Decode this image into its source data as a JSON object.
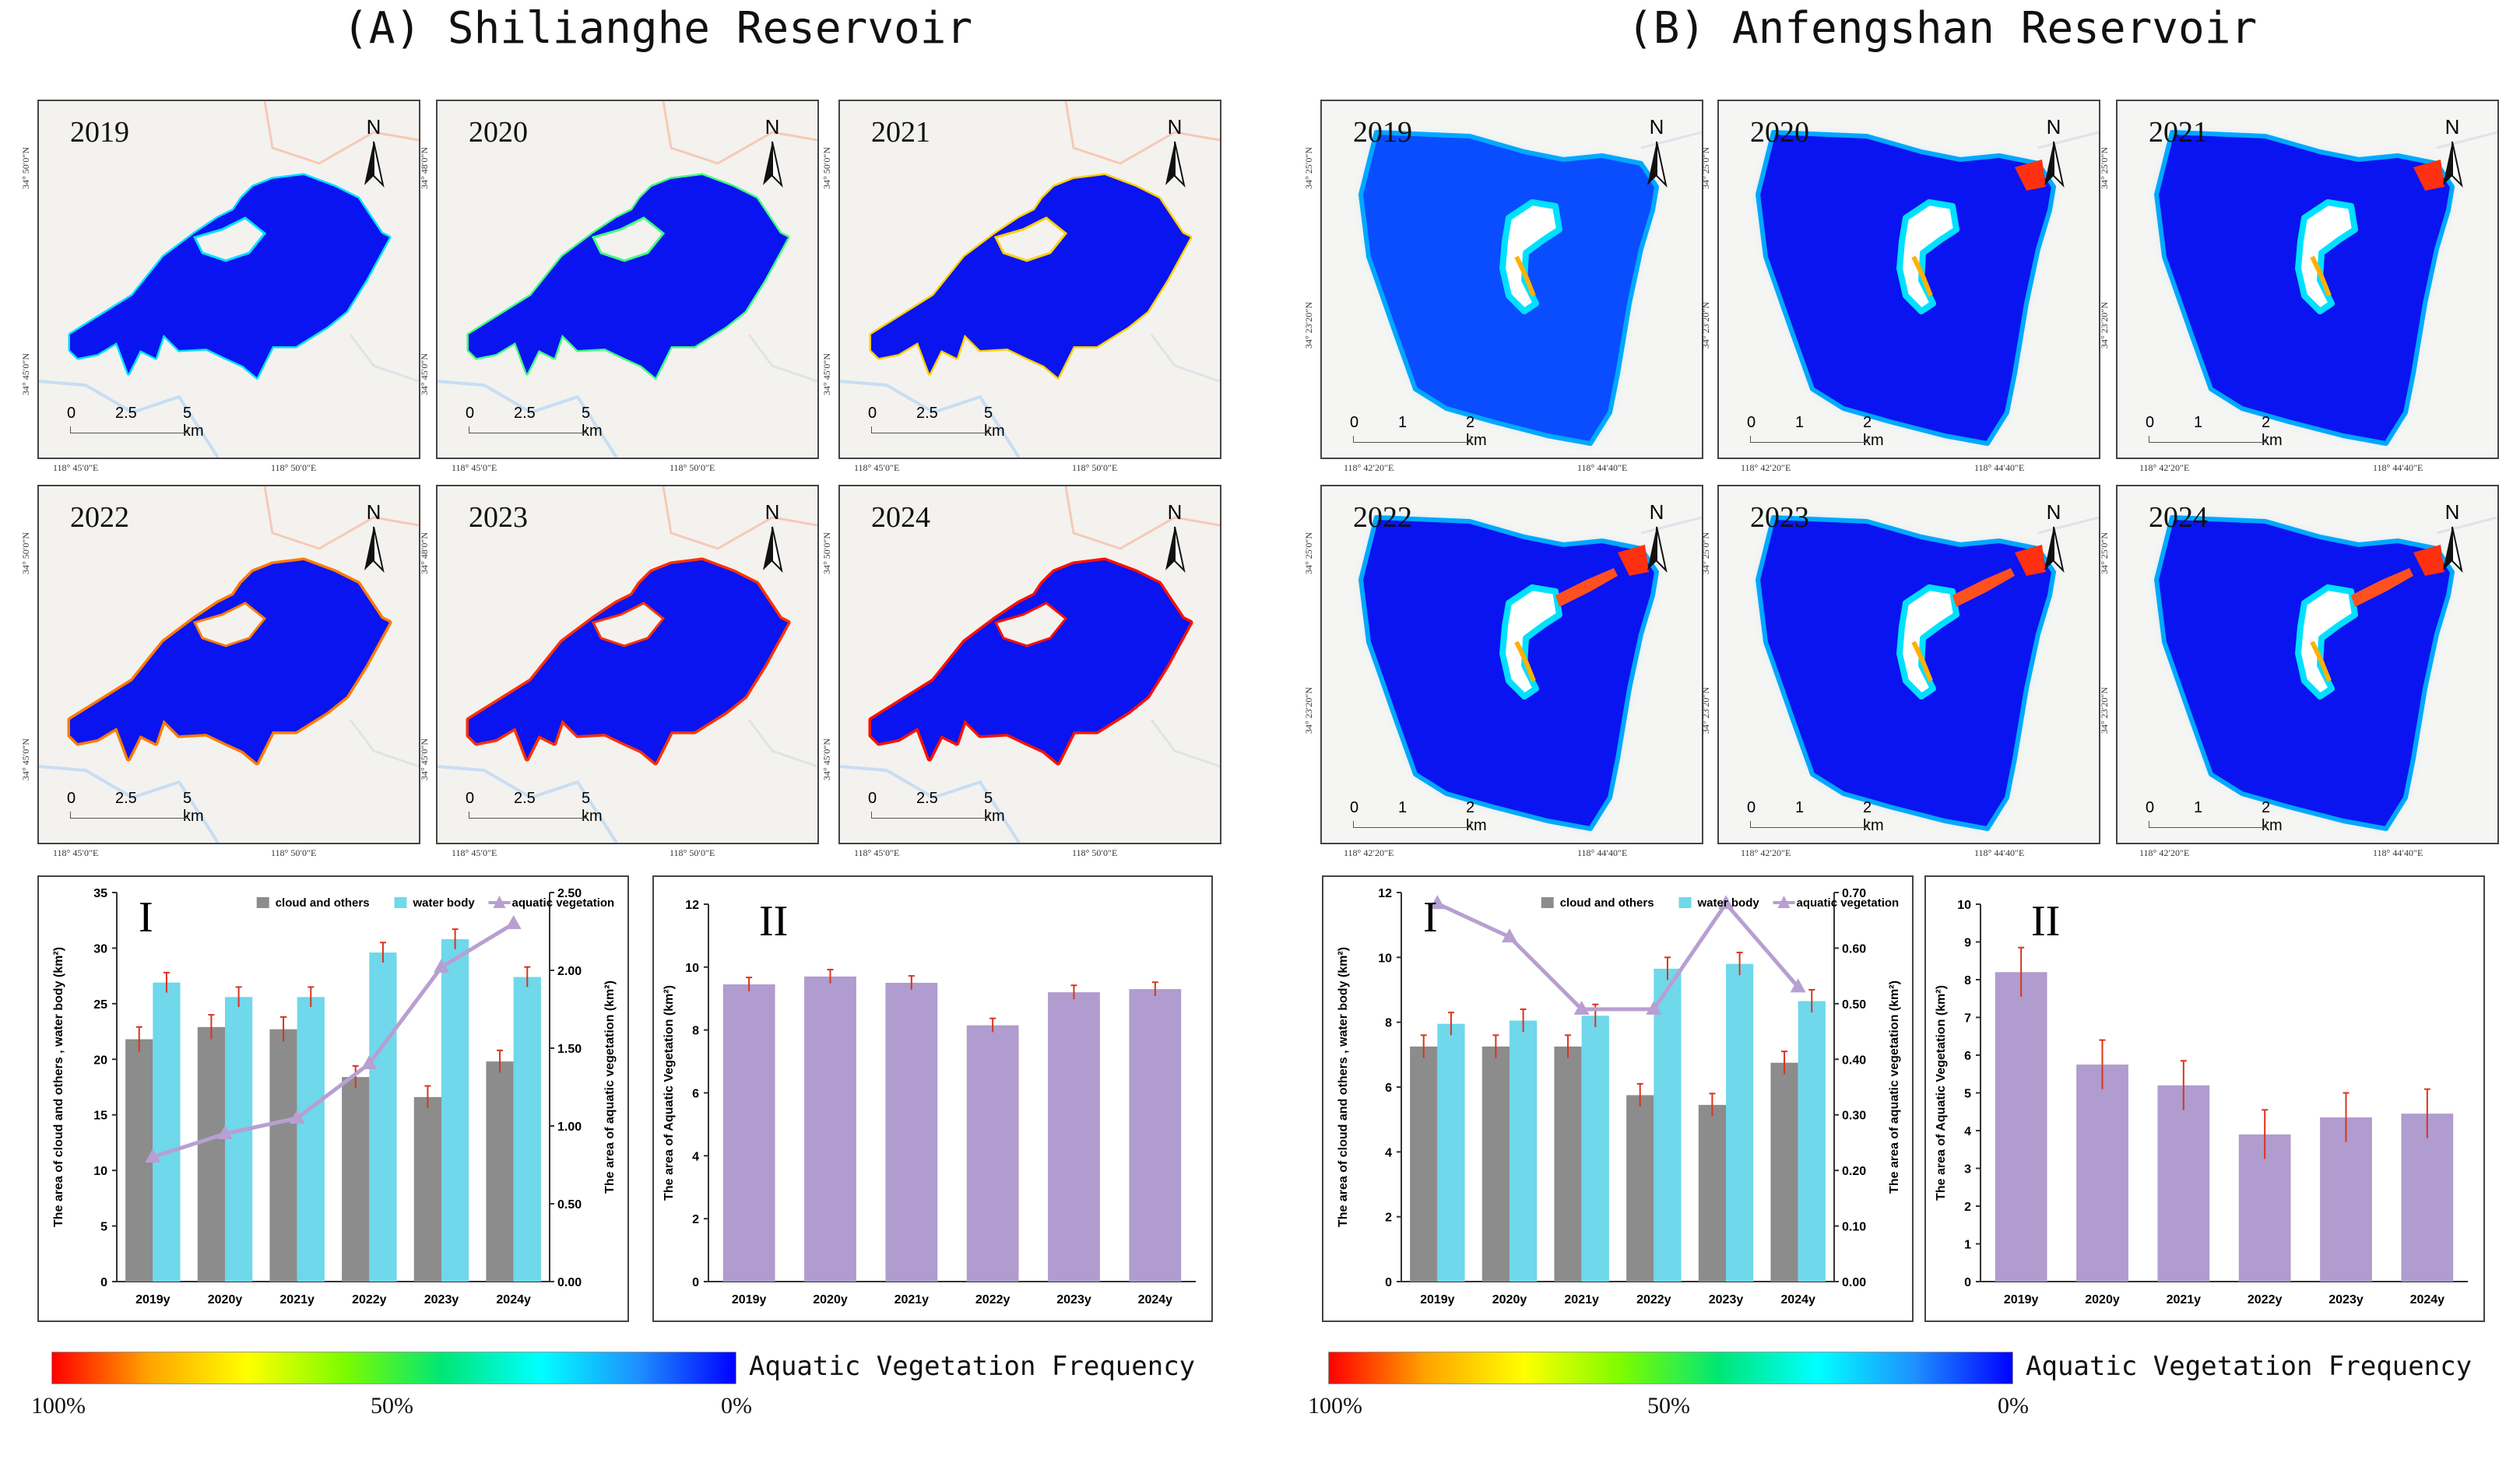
{
  "panels": {
    "left_title": "(A) Shilianghe Reservoir",
    "right_title": "(B) Anfengshan Reservoir",
    "years": [
      "2019",
      "2020",
      "2021",
      "2022",
      "2023",
      "2024"
    ],
    "north_label": "N",
    "left_scale": {
      "t0": "0",
      "t1": "2.5",
      "t2": "5 km"
    },
    "right_scale": {
      "t0": "0",
      "t1": "1",
      "t2": "2 km"
    },
    "left_coords": {
      "lon1": "118° 45′0″E",
      "lon2": "118° 50′0″E",
      "lat1": "34° 50′0″N",
      "lat2": "34° 45′0″N",
      "lat_alt": "34° 48′0″N"
    },
    "right_coords": {
      "lon1": "118° 42′20″E",
      "lon2": "118° 44′40″E",
      "lat1": "34° 25′0″N",
      "lat2": "34° 23′20″N"
    }
  },
  "legend": {
    "label": "Aquatic Vegetation  Frequency",
    "p100": "100%",
    "p50": "50%",
    "p0": "0%",
    "gradient": [
      "#ff0000",
      "#ffa500",
      "#ffff00",
      "#7cfc00",
      "#00e676",
      "#00ffff",
      "#1e90ff",
      "#0000ff"
    ]
  },
  "colors": {
    "gray_bar": "#8c8c8c",
    "water_bar": "#6fd8ea",
    "veg_line": "#b89fd1",
    "veg_bar": "#b09cce",
    "error": "#d9341e",
    "water_map": "#0a14f0"
  },
  "chart_data": [
    {
      "id": "A-I",
      "type": "bar",
      "title": "I",
      "categories": [
        "2019y",
        "2020y",
        "2021y",
        "2022y",
        "2023y",
        "2024y"
      ],
      "series": [
        {
          "name": "cloud and others",
          "values": [
            21.8,
            22.9,
            22.7,
            18.4,
            16.6,
            19.8
          ],
          "errors": [
            1.1,
            1.1,
            1.1,
            1.0,
            1.0,
            1.0
          ]
        },
        {
          "name": "water body",
          "values": [
            26.9,
            25.6,
            25.6,
            29.6,
            30.8,
            27.4
          ],
          "errors": [
            0.9,
            0.9,
            0.9,
            0.9,
            0.9,
            0.9
          ]
        },
        {
          "name": "aquatic vegetation",
          "type": "line",
          "axis": "right",
          "values": [
            0.8,
            0.95,
            1.05,
            1.4,
            2.02,
            2.3
          ]
        }
      ],
      "ylabel": "The area of cloud and others , water body (km²)",
      "y2label": "The area of aquatic vegetation (km²)",
      "ylim": [
        0,
        35
      ],
      "yticks": [
        "0",
        "5",
        "10",
        "15",
        "20",
        "25",
        "30",
        "35"
      ],
      "y2lim": [
        0,
        2.5
      ],
      "y2ticks": [
        "0.00",
        "0.50",
        "1.00",
        "1.50",
        "2.00",
        "2.50"
      ],
      "legend": [
        "cloud and others",
        "water body",
        "aquatic vegetation"
      ]
    },
    {
      "id": "A-II",
      "type": "bar",
      "title": "II",
      "categories": [
        "2019y",
        "2020y",
        "2021y",
        "2022y",
        "2023y",
        "2024y"
      ],
      "values": [
        9.45,
        9.7,
        9.5,
        8.15,
        9.2,
        9.3
      ],
      "errors": [
        0.22,
        0.22,
        0.22,
        0.22,
        0.22,
        0.22
      ],
      "ylabel": "The area of Aquatic Vegetation (km²)",
      "ylim": [
        0,
        12
      ],
      "yticks": [
        "0",
        "2",
        "4",
        "6",
        "8",
        "10",
        "12"
      ]
    },
    {
      "id": "B-I",
      "type": "bar",
      "title": "I",
      "categories": [
        "2019y",
        "2020y",
        "2021y",
        "2022y",
        "2023y",
        "2024y"
      ],
      "series": [
        {
          "name": "cloud and others",
          "values": [
            7.25,
            7.25,
            7.25,
            5.75,
            5.45,
            6.75
          ],
          "errors": [
            0.35,
            0.35,
            0.35,
            0.35,
            0.35,
            0.35
          ]
        },
        {
          "name": "water body",
          "values": [
            7.95,
            8.05,
            8.2,
            9.65,
            9.8,
            8.65
          ],
          "errors": [
            0.35,
            0.35,
            0.35,
            0.35,
            0.35,
            0.35
          ]
        },
        {
          "name": "aquatic vegetation",
          "type": "line",
          "axis": "right",
          "values": [
            0.68,
            0.62,
            0.49,
            0.49,
            0.68,
            0.53
          ]
        }
      ],
      "ylabel": "The area of cloud and others , water body (km²)",
      "y2label": "The area of aquatic vegetation (km²)",
      "ylim": [
        0,
        12
      ],
      "yticks": [
        "0",
        "2",
        "4",
        "6",
        "8",
        "10",
        "12"
      ],
      "y2lim": [
        0,
        0.7
      ],
      "y2ticks": [
        "0.00",
        "0.10",
        "0.20",
        "0.30",
        "0.40",
        "0.50",
        "0.60",
        "0.70"
      ],
      "legend": [
        "cloud and others",
        "water body",
        "aquatic vegetation"
      ]
    },
    {
      "id": "B-II",
      "type": "bar",
      "title": "II",
      "categories": [
        "2019y",
        "2020y",
        "2021y",
        "2022y",
        "2023y",
        "2024y"
      ],
      "values": [
        8.2,
        5.75,
        5.2,
        3.9,
        4.35,
        4.45
      ],
      "errors": [
        0.65,
        0.65,
        0.65,
        0.65,
        0.65,
        0.65
      ],
      "ylabel": "The area of Aquatic Vegetation (km²)",
      "ylim": [
        0,
        10
      ],
      "yticks": [
        "0",
        "1",
        "2",
        "3",
        "4",
        "5",
        "6",
        "7",
        "8",
        "9",
        "10"
      ]
    }
  ]
}
